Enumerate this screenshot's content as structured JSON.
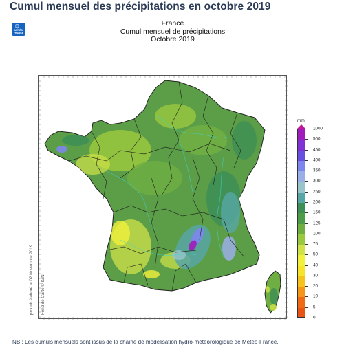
{
  "page": {
    "heading": "Cumul mensuel des précipitations en octobre 2019",
    "logo": {
      "icon": "meteo-france-logo-icon",
      "text": "MÉTÉO\nFRANCE"
    }
  },
  "map": {
    "title_lines": [
      "France",
      "Cumul mensuel de précipitations",
      "Octobre 2019"
    ],
    "credits": [
      "produit élaboré le 02 Novembre 2019",
      "Fond de Carte © IGN"
    ]
  },
  "legend": {
    "unit": "mm",
    "levels": [
      {
        "label": "1000",
        "color": "#c8189a"
      },
      {
        "label": "500",
        "color": "#a01cbd"
      },
      {
        "label": "450",
        "color": "#7f31d6"
      },
      {
        "label": "400",
        "color": "#6a4ee0"
      },
      {
        "label": "350",
        "color": "#7d86ec"
      },
      {
        "label": "300",
        "color": "#9aaee8"
      },
      {
        "label": "250",
        "color": "#98c4cc"
      },
      {
        "label": "200",
        "color": "#57a6a6"
      },
      {
        "label": "150",
        "color": "#3e8f55"
      },
      {
        "label": "125",
        "color": "#4c9c48"
      },
      {
        "label": "100",
        "color": "#6fae42"
      },
      {
        "label": "75",
        "color": "#9ac83e"
      },
      {
        "label": "50",
        "color": "#cfe248"
      },
      {
        "label": "40",
        "color": "#f1f03c"
      },
      {
        "label": "30",
        "color": "#f7e32a"
      },
      {
        "label": "20",
        "color": "#f6c21c"
      },
      {
        "label": "10",
        "color": "#f49618"
      },
      {
        "label": "5",
        "color": "#ef6a14"
      },
      {
        "label": "0",
        "color": "#e85414"
      }
    ]
  },
  "footnote": "NB : Les cumuls mensuels sont issus de la chaîne de modélisation hydro-météorologique de Météo-France."
}
